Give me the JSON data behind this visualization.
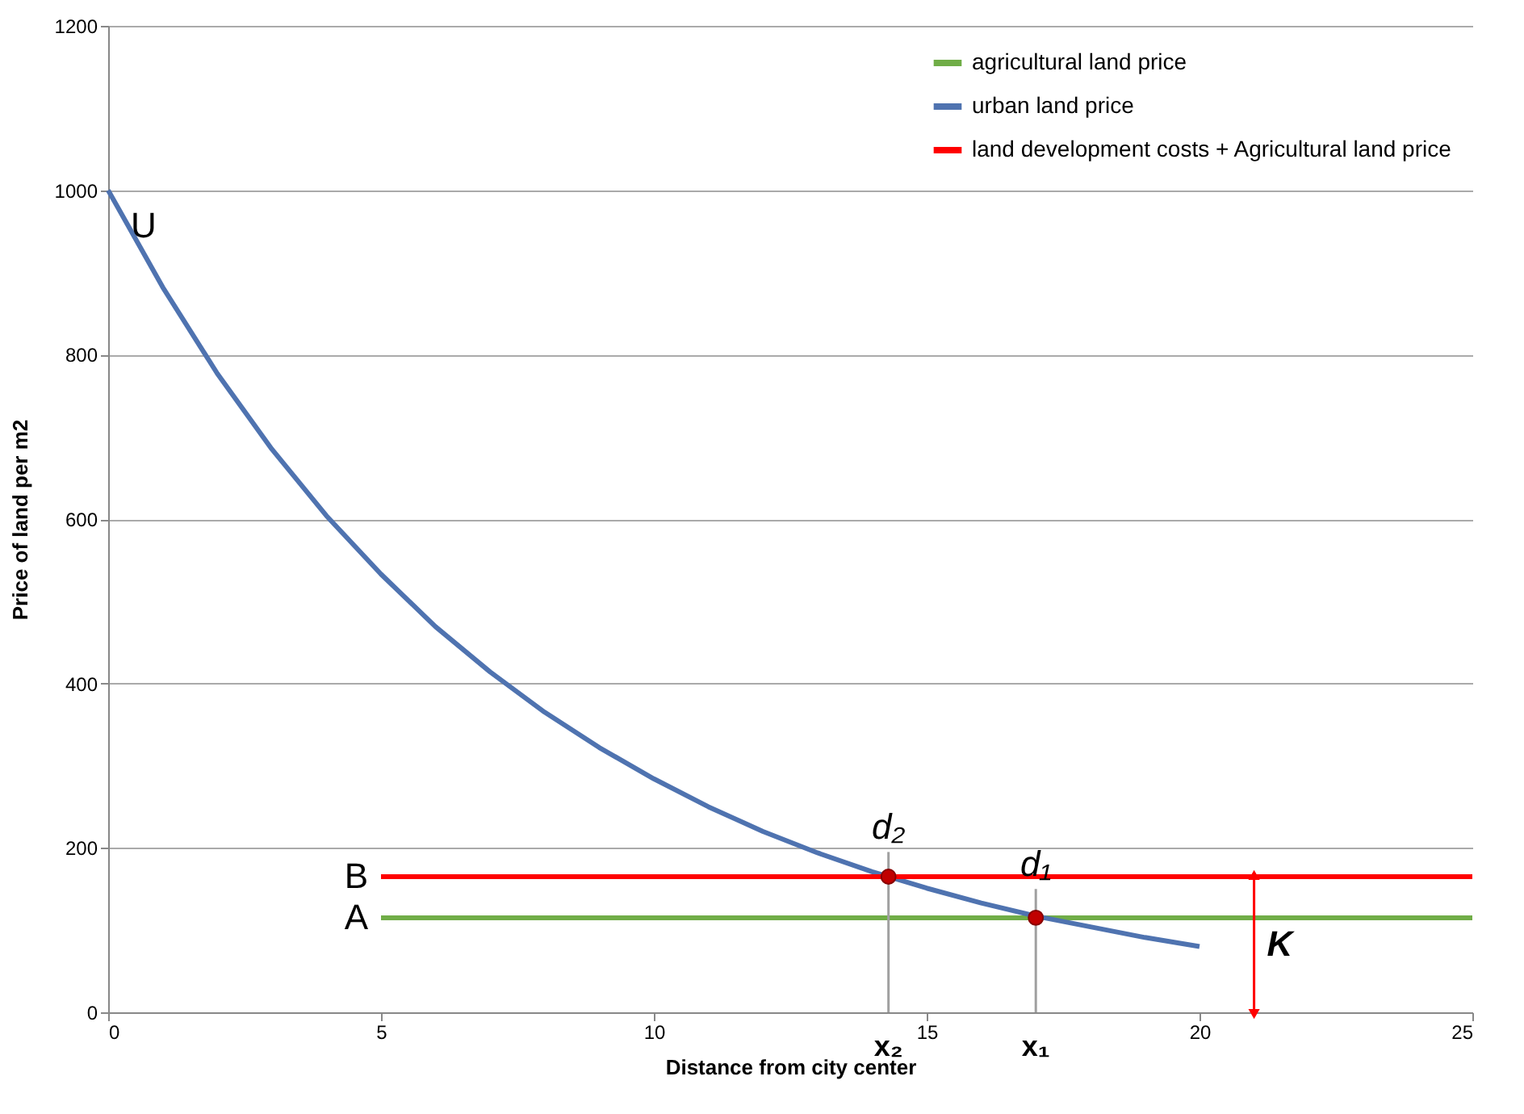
{
  "chart_data": {
    "type": "line",
    "xlabel": "Distance from city center",
    "ylabel": "Price of land per m2",
    "xlim": [
      0,
      25
    ],
    "ylim": [
      0,
      1200
    ],
    "xticks": [
      0,
      5,
      10,
      15,
      20,
      25
    ],
    "yticks": [
      0,
      200,
      400,
      600,
      800,
      1000,
      1200
    ],
    "grid": "y",
    "legend": "top right",
    "series": [
      {
        "name": "agricultural land price",
        "color": "#70ad47",
        "x": [
          5,
          25
        ],
        "values": [
          115,
          115
        ]
      },
      {
        "name": "urban land price",
        "color": "#4f73b0",
        "x": [
          0,
          1,
          2,
          3,
          4,
          5,
          6,
          7,
          8,
          9,
          10,
          11,
          12,
          13,
          14,
          15,
          16,
          17,
          18,
          19,
          20
        ],
        "values": [
          1000,
          882,
          777,
          685,
          604,
          533,
          469,
          414,
          365,
          322,
          284,
          250,
          220,
          194,
          171,
          151,
          133,
          117,
          104,
          91,
          80
        ]
      },
      {
        "name": "land development costs + Agricultural land price",
        "color": "#ff0000",
        "x": [
          5,
          25
        ],
        "values": [
          165,
          165
        ]
      },
      {
        "type": "scatter",
        "color": "#c00000",
        "x": [
          14.3,
          17
        ],
        "values": [
          165,
          115
        ]
      }
    ],
    "ref_lines": [
      {
        "axis": "x",
        "value": 14.3,
        "label": "x₂",
        "color": "#a0a0a0"
      },
      {
        "axis": "x",
        "value": 17,
        "label": "x₁",
        "color": "#a0a0a0"
      }
    ],
    "annotations": [
      {
        "text": "U",
        "x": 0,
        "y": 1000
      },
      {
        "text": "B",
        "x": 5,
        "y": 165
      },
      {
        "text": "A",
        "x": 5,
        "y": 115
      },
      {
        "text": "d₂",
        "x": 14.3,
        "y": 195
      },
      {
        "text": "d₁",
        "x": 17,
        "y": 150
      },
      {
        "text": "K",
        "x": 21,
        "y": 165
      }
    ]
  }
}
